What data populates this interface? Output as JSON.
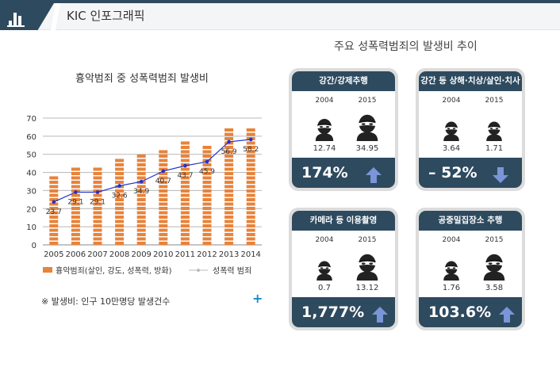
{
  "header": {
    "title": "KIC 인포그래픽"
  },
  "left": {
    "title": "흉악범죄 중 성폭력범죄 발생비",
    "note": "※ 발생비: 인구 10만명당 발생건수"
  },
  "right": {
    "title": "주요 성폭력범죄의 발생비 추이"
  },
  "chart_data": {
    "type": "bar",
    "title": "흉악범죄 중 성폭력범죄 발생비",
    "categories": [
      "2005",
      "2006",
      "2007",
      "2008",
      "2009",
      "2010",
      "2011",
      "2012",
      "2013",
      "2014"
    ],
    "series": [
      {
        "name": "흉악범죄(살인, 강도, 성폭력, 방화)",
        "type": "bar",
        "color": "#e8833a",
        "values": [
          39,
          44,
          44,
          49,
          52,
          54,
          58,
          57,
          66,
          66
        ]
      },
      {
        "name": "성폭력 범죄",
        "type": "line",
        "color": "#2233cc",
        "values": [
          23.7,
          29.1,
          29.1,
          32.6,
          34.9,
          40.7,
          43.7,
          45.9,
          56.9,
          58.2
        ]
      }
    ],
    "yticks": [
      0,
      10,
      20,
      30,
      40,
      50,
      60,
      70
    ],
    "ylim": [
      0,
      70
    ]
  },
  "cards": [
    {
      "title": "강간/강제추행",
      "year_a": "2004",
      "year_b": "2015",
      "val_a": "12.74",
      "val_b": "34.95",
      "change": "174%",
      "dir": "up"
    },
    {
      "title": "강간 등 상해·치상/살인·치사",
      "year_a": "2004",
      "year_b": "2015",
      "val_a": "3.64",
      "val_b": "1.71",
      "change": "– 52%",
      "dir": "down"
    },
    {
      "title": "카메라 등 이용촬영",
      "year_a": "2004",
      "year_b": "2015",
      "val_a": "0.7",
      "val_b": "13.12",
      "change": "1,777%",
      "dir": "up"
    },
    {
      "title": "공중밀집장소 추행",
      "year_a": "2004",
      "year_b": "2015",
      "val_a": "1.76",
      "val_b": "3.58",
      "change": "103.6%",
      "dir": "up"
    }
  ],
  "icons": {
    "header": "bar-chart-icon",
    "more": "plus-icon",
    "person": "masked-thief-icon",
    "up": "arrow-up-icon",
    "down": "arrow-down-icon"
  },
  "colors": {
    "navy": "#2e4a5f",
    "bar": "#e8833a",
    "line": "#2233cc",
    "arrow": "#7a95d8"
  }
}
